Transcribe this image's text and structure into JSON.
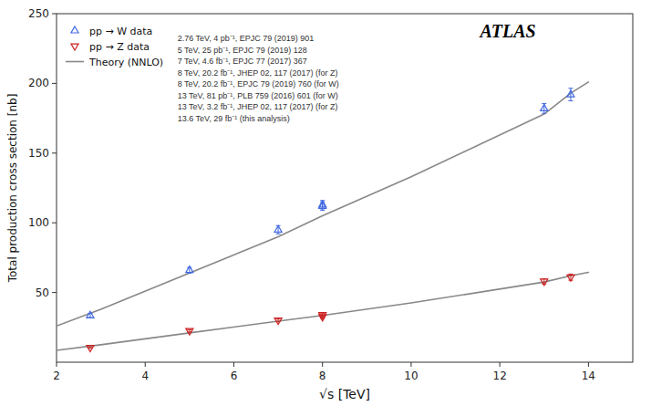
{
  "chart_data": {
    "type": "scatter",
    "title": "ATLAS",
    "x_label": "√s [TeV]",
    "y_label": "Total production cross section [nb]",
    "xlim": [
      2,
      15
    ],
    "ylim": [
      0,
      250
    ],
    "xticks": [
      2,
      4,
      6,
      8,
      10,
      12,
      14
    ],
    "yticks": [
      50,
      100,
      150,
      200,
      250
    ],
    "grid": false,
    "legend": "upper left",
    "annotations": [
      "2.76 TeV, 4 pb⁻¹, EPJC 79 (2019) 901",
      "5 TeV, 25 pb⁻¹, EPJC 79 (2019) 128",
      "7 TeV, 4.6 fb⁻¹, EPJC 77 (2017) 367",
      "8 TeV, 20.2 fb⁻¹, JHEP 02, 117 (2017) (for Z)",
      "8 TeV, 20.2 fb⁻¹, EPJC 79 (2019) 760 (for W)",
      "13 TeV, 81 pb⁻¹, PLB 759 (2016) 601 (for W)",
      "13 TeV, 3.2 fb⁻¹, JHEP 02, 117 (2017) (for Z)",
      "13.6 TeV, 29 fb⁻¹ (this analysis)"
    ],
    "series": [
      {
        "name": "pp → W data",
        "type": "scatter",
        "marker": "triangle-up",
        "color": "#4169E1",
        "x": [
          2.76,
          5.0,
          7.0,
          8.0,
          8.0,
          13.0,
          13.6
        ],
        "values": [
          33.5,
          66.0,
          95.0,
          113.0,
          112.0,
          182.0,
          192.0
        ],
        "errors": [
          1.5,
          2.0,
          3.0,
          3.0,
          3.0,
          3.5,
          4.5
        ]
      },
      {
        "name": "pp → Z data",
        "type": "scatter",
        "marker": "triangle-down",
        "color": "#CC2222",
        "x": [
          2.76,
          5.0,
          7.0,
          8.0,
          8.0,
          13.0,
          13.6
        ],
        "values": [
          10.5,
          22.5,
          30.0,
          32.5,
          34.0,
          58.0,
          61.0
        ],
        "errors": [
          0.5,
          0.8,
          1.0,
          1.0,
          1.2,
          1.8,
          2.2
        ]
      },
      {
        "name": "Theory (NNLO)",
        "type": "line",
        "line_style": "solid",
        "color": "#888888",
        "x": [
          2.0,
          3.0,
          5.0,
          7.0,
          8.0,
          10.0,
          13.0,
          13.6,
          14.0
        ],
        "values": [
          26.0,
          38.0,
          64.0,
          90.0,
          105.0,
          133.0,
          178.0,
          193.0,
          201.0
        ]
      },
      {
        "type": "line",
        "line_style": "solid",
        "color": "#888888",
        "x": [
          2.0,
          3.0,
          5.0,
          7.0,
          8.0,
          10.0,
          13.0,
          13.6,
          14.0
        ],
        "values": [
          8.5,
          12.5,
          21.0,
          29.5,
          33.5,
          42.5,
          57.5,
          62.0,
          64.5
        ]
      }
    ]
  }
}
